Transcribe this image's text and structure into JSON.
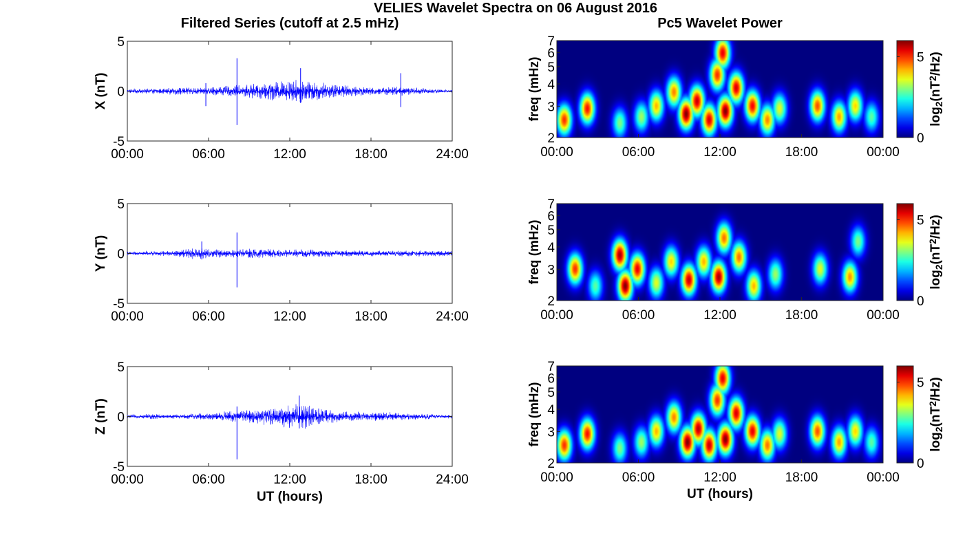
{
  "title": "VELIES Wavelet Spectra on 06 August 2016",
  "left_title": "Filtered Series (cutoff at 2.5 mHz)",
  "right_title": "Pc5 Wavelet Power",
  "colors": {
    "trace": "#0000ff",
    "background": "#ffffff"
  },
  "chart_data": [
    {
      "type": "line",
      "title": "Filtered Series (cutoff at 2.5 mHz)",
      "ylabel": "X (nT)",
      "xlabel": "",
      "xlim": [
        0,
        24
      ],
      "ylim": [
        -5,
        5
      ],
      "xticks": [
        "00:00",
        "06:00",
        "12:00",
        "18:00",
        "24:00"
      ],
      "yticks": [
        "5",
        "0",
        "-5"
      ],
      "baseline_amplitude_nT": [
        0.2,
        0.25,
        0.3,
        0.3,
        0.4,
        0.35,
        0.4,
        0.5,
        0.6,
        0.7,
        0.9,
        1.0,
        1.1,
        1.2,
        1.0,
        0.8,
        0.6,
        0.5,
        0.4,
        0.4,
        0.5,
        0.4,
        0.3,
        0.2,
        0.2
      ],
      "spikes": [
        {
          "x": 8.1,
          "y": [
            -3.4,
            3.3
          ]
        },
        {
          "x": 5.8,
          "y": [
            -1.5,
            0.8
          ]
        },
        {
          "x": 12.8,
          "y": [
            -1.2,
            2.3
          ]
        },
        {
          "x": 20.2,
          "y": [
            -1.6,
            1.8
          ]
        }
      ]
    },
    {
      "type": "line",
      "ylabel": "Y (nT)",
      "xlabel": "",
      "xlim": [
        0,
        24
      ],
      "ylim": [
        -5,
        5
      ],
      "xticks": [
        "00:00",
        "06:00",
        "12:00",
        "18:00",
        "24:00"
      ],
      "yticks": [
        "5",
        "0",
        "-5"
      ],
      "baseline_amplitude_nT": [
        0.2,
        0.2,
        0.25,
        0.25,
        0.4,
        0.6,
        0.5,
        0.4,
        0.4,
        0.5,
        0.5,
        0.4,
        0.4,
        0.4,
        0.4,
        0.35,
        0.35,
        0.3,
        0.3,
        0.3,
        0.3,
        0.3,
        0.3,
        0.3,
        0.3
      ],
      "spikes": [
        {
          "x": 8.1,
          "y": [
            -3.4,
            2.1
          ]
        },
        {
          "x": 5.5,
          "y": [
            -0.6,
            1.2
          ]
        }
      ]
    },
    {
      "type": "line",
      "ylabel": "Z (nT)",
      "xlabel": "UT (hours)",
      "xlim": [
        0,
        24
      ],
      "ylim": [
        -5,
        5
      ],
      "xticks": [
        "00:00",
        "06:00",
        "12:00",
        "18:00",
        "24:00"
      ],
      "yticks": [
        "5",
        "0",
        "-5"
      ],
      "baseline_amplitude_nT": [
        0.2,
        0.2,
        0.3,
        0.2,
        0.25,
        0.3,
        0.4,
        0.5,
        0.6,
        0.7,
        0.9,
        1.0,
        1.2,
        1.3,
        1.0,
        0.7,
        0.5,
        0.5,
        0.4,
        0.5,
        0.4,
        0.3,
        0.3,
        0.2,
        0.2
      ],
      "spikes": [
        {
          "x": 8.1,
          "y": [
            -4.3,
            1.0
          ]
        },
        {
          "x": 12.7,
          "y": [
            -1.2,
            2.1
          ]
        }
      ]
    },
    {
      "type": "heatmap",
      "title": "Pc5 Wavelet Power",
      "ylabel": "freq (mHz)",
      "xlabel": "",
      "xlim": [
        0,
        24
      ],
      "ylim": [
        2,
        7
      ],
      "yscale": "log",
      "xticks": [
        "00:00",
        "06:00",
        "12:00",
        "18:00",
        "00:00"
      ],
      "yticks": [
        "2",
        "3",
        "4",
        "5",
        "6",
        "7"
      ],
      "colorbar": {
        "label_base": "log",
        "label_sub": "2",
        "label_open": "(nT",
        "label_sup": "2",
        "label_close": "/Hz)",
        "range": [
          0,
          6
        ],
        "ticks": [
          "0",
          "5"
        ]
      },
      "blobs": [
        {
          "t": 0.5,
          "f": 2.5,
          "p": 5.0
        },
        {
          "t": 2.2,
          "f": 2.9,
          "p": 5.2
        },
        {
          "t": 4.6,
          "f": 2.4,
          "p": 3.0
        },
        {
          "t": 6.2,
          "f": 2.6,
          "p": 3.2
        },
        {
          "t": 7.3,
          "f": 3.0,
          "p": 4.2
        },
        {
          "t": 8.6,
          "f": 3.6,
          "p": 4.5
        },
        {
          "t": 9.5,
          "f": 2.7,
          "p": 6.0
        },
        {
          "t": 10.3,
          "f": 3.2,
          "p": 5.6
        },
        {
          "t": 11.2,
          "f": 2.5,
          "p": 5.5
        },
        {
          "t": 11.8,
          "f": 4.5,
          "p": 5.0
        },
        {
          "t": 12.4,
          "f": 2.8,
          "p": 6.0
        },
        {
          "t": 12.2,
          "f": 6.0,
          "p": 5.4
        },
        {
          "t": 13.2,
          "f": 3.8,
          "p": 5.5
        },
        {
          "t": 14.4,
          "f": 3.0,
          "p": 5.3
        },
        {
          "t": 15.5,
          "f": 2.5,
          "p": 4.5
        },
        {
          "t": 16.4,
          "f": 2.9,
          "p": 3.6
        },
        {
          "t": 19.2,
          "f": 3.0,
          "p": 4.8
        },
        {
          "t": 20.8,
          "f": 2.6,
          "p": 4.3
        },
        {
          "t": 22.0,
          "f": 3.0,
          "p": 4.0
        },
        {
          "t": 23.2,
          "f": 2.6,
          "p": 2.8
        }
      ]
    },
    {
      "type": "heatmap",
      "ylabel": "freq (mHz)",
      "xlabel": "",
      "xlim": [
        0,
        24
      ],
      "ylim": [
        2,
        7
      ],
      "yscale": "log",
      "xticks": [
        "00:00",
        "06:00",
        "12:00",
        "18:00",
        "00:00"
      ],
      "yticks": [
        "2",
        "3",
        "4",
        "5",
        "6",
        "7"
      ],
      "colorbar": {
        "label_base": "log",
        "label_sub": "2",
        "label_open": "(nT",
        "label_sup": "2",
        "label_close": "/Hz)",
        "range": [
          0,
          6
        ],
        "ticks": [
          "0",
          "5"
        ]
      },
      "blobs": [
        {
          "t": 1.3,
          "f": 3.0,
          "p": 5.0
        },
        {
          "t": 2.8,
          "f": 2.4,
          "p": 2.8
        },
        {
          "t": 4.6,
          "f": 3.6,
          "p": 5.8
        },
        {
          "t": 5.0,
          "f": 2.4,
          "p": 6.0
        },
        {
          "t": 5.9,
          "f": 3.0,
          "p": 5.4
        },
        {
          "t": 7.3,
          "f": 2.5,
          "p": 3.6
        },
        {
          "t": 8.4,
          "f": 3.3,
          "p": 4.0
        },
        {
          "t": 9.7,
          "f": 2.6,
          "p": 5.6
        },
        {
          "t": 10.8,
          "f": 3.3,
          "p": 4.2
        },
        {
          "t": 11.9,
          "f": 2.7,
          "p": 5.8
        },
        {
          "t": 12.3,
          "f": 4.5,
          "p": 4.6
        },
        {
          "t": 13.4,
          "f": 3.5,
          "p": 4.6
        },
        {
          "t": 14.5,
          "f": 2.4,
          "p": 4.2
        },
        {
          "t": 16.1,
          "f": 2.8,
          "p": 3.2
        },
        {
          "t": 19.4,
          "f": 3.0,
          "p": 3.6
        },
        {
          "t": 21.6,
          "f": 2.7,
          "p": 4.4
        },
        {
          "t": 22.2,
          "f": 4.3,
          "p": 3.0
        }
      ]
    },
    {
      "type": "heatmap",
      "ylabel": "freq (mHz)",
      "xlabel": "UT (hours)",
      "xlim": [
        0,
        24
      ],
      "ylim": [
        2,
        7
      ],
      "yscale": "log",
      "xticks": [
        "00:00",
        "06:00",
        "12:00",
        "18:00",
        "00:00"
      ],
      "yticks": [
        "2",
        "3",
        "4",
        "5",
        "6",
        "7"
      ],
      "colorbar": {
        "label_base": "log",
        "label_sub": "2",
        "label_open": "(nT",
        "label_sup": "2",
        "label_close": "/Hz)",
        "range": [
          0,
          6
        ],
        "ticks": [
          "0",
          "5"
        ]
      },
      "blobs": [
        {
          "t": 0.5,
          "f": 2.5,
          "p": 5.0
        },
        {
          "t": 2.2,
          "f": 2.9,
          "p": 5.2
        },
        {
          "t": 4.6,
          "f": 2.4,
          "p": 3.0
        },
        {
          "t": 6.2,
          "f": 2.6,
          "p": 3.2
        },
        {
          "t": 7.3,
          "f": 3.0,
          "p": 4.2
        },
        {
          "t": 8.6,
          "f": 3.6,
          "p": 4.5
        },
        {
          "t": 9.6,
          "f": 2.6,
          "p": 6.0
        },
        {
          "t": 10.4,
          "f": 3.1,
          "p": 5.7
        },
        {
          "t": 11.2,
          "f": 2.5,
          "p": 5.6
        },
        {
          "t": 11.8,
          "f": 4.5,
          "p": 5.0
        },
        {
          "t": 12.4,
          "f": 2.7,
          "p": 6.0
        },
        {
          "t": 12.2,
          "f": 6.0,
          "p": 5.4
        },
        {
          "t": 13.2,
          "f": 3.8,
          "p": 5.5
        },
        {
          "t": 14.4,
          "f": 3.0,
          "p": 5.4
        },
        {
          "t": 15.5,
          "f": 2.5,
          "p": 4.6
        },
        {
          "t": 16.4,
          "f": 2.9,
          "p": 3.6
        },
        {
          "t": 19.2,
          "f": 3.0,
          "p": 4.8
        },
        {
          "t": 20.8,
          "f": 2.6,
          "p": 4.3
        },
        {
          "t": 22.0,
          "f": 3.0,
          "p": 4.0
        },
        {
          "t": 23.2,
          "f": 2.6,
          "p": 2.8
        }
      ]
    }
  ]
}
